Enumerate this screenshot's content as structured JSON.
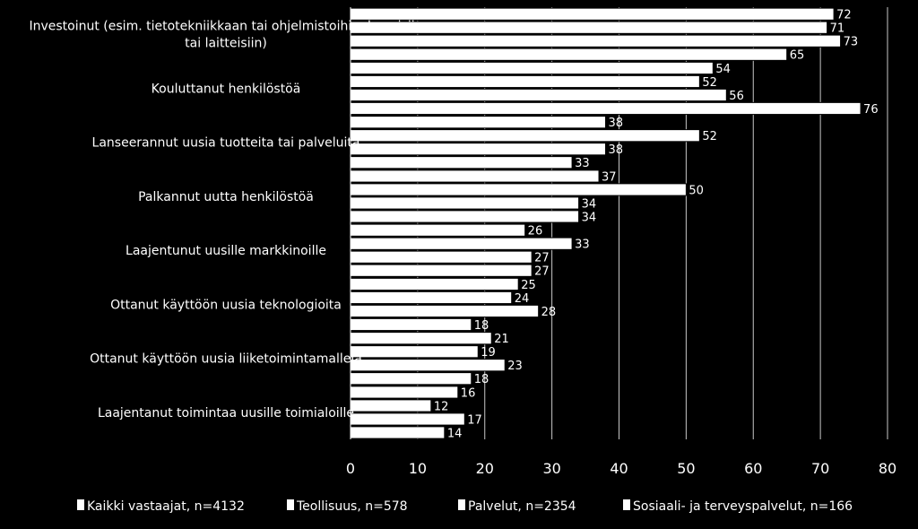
{
  "chart_data": {
    "type": "bar",
    "orientation": "horizontal",
    "categories": [
      [
        "Investoinut  (esim. tietotekniikkaan tai ohjelmistoihin, koneisiin",
        "tai laitteisiin)"
      ],
      [
        "Kouluttanut henkilöstöä"
      ],
      [
        "Lanseerannut uusia tuotteita tai palveluita"
      ],
      [
        "Palkannut uutta henkilöstöä"
      ],
      [
        "Laajentunut uusille markkinoille"
      ],
      [
        "Ottanut käyttöön uusia teknologioita"
      ],
      [
        "Ottanut käyttöön uusia liiketoimintamalleja"
      ],
      [
        "Laajentanut toimintaa uusille toimialoille"
      ]
    ],
    "series": [
      {
        "name": "Kaikki vastaajat, n=4132",
        "values": [
          72,
          54,
          38,
          37,
          26,
          25,
          21,
          16
        ]
      },
      {
        "name": "Teollisuus, n=578",
        "values": [
          71,
          52,
          52,
          50,
          33,
          24,
          19,
          12
        ]
      },
      {
        "name": "Palvelut, n=2354",
        "values": [
          73,
          56,
          38,
          34,
          27,
          28,
          23,
          17
        ]
      },
      {
        "name": "Sosiaali- ja terveyspalvelut, n=166",
        "values": [
          65,
          76,
          33,
          34,
          27,
          18,
          18,
          14
        ]
      }
    ],
    "xlim": [
      0,
      80
    ],
    "xticks": [
      0,
      10,
      20,
      30,
      40,
      50,
      60,
      70,
      80
    ],
    "grid": true,
    "legend_position": "bottom",
    "colors": {
      "background": "#000000",
      "bar_fill": "#ffffff",
      "bar_stroke": "#000000",
      "grid": "#c8c8c8",
      "text": "#ffffff"
    }
  }
}
